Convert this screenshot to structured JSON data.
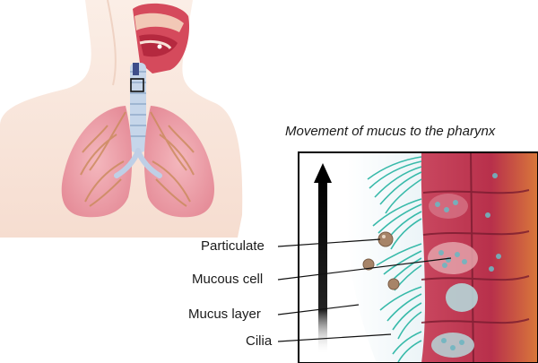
{
  "diagram": {
    "title": "Movement of mucus to the pharynx",
    "labels": {
      "particulate": "Particulate",
      "mucous_cell": "Mucous cell",
      "mucus_layer": "Mucus layer",
      "cilia": "Cilia"
    },
    "colors": {
      "skin": "#f7e3d6",
      "lung": "#f1a9b0",
      "lung_vessel": "#c98a5a",
      "trachea": "#c6d6ea",
      "cilia": "#2fb7a6",
      "tissue": "#c23a55",
      "mucus": "#dcecf2",
      "arrow": "#0f0f0f"
    }
  }
}
